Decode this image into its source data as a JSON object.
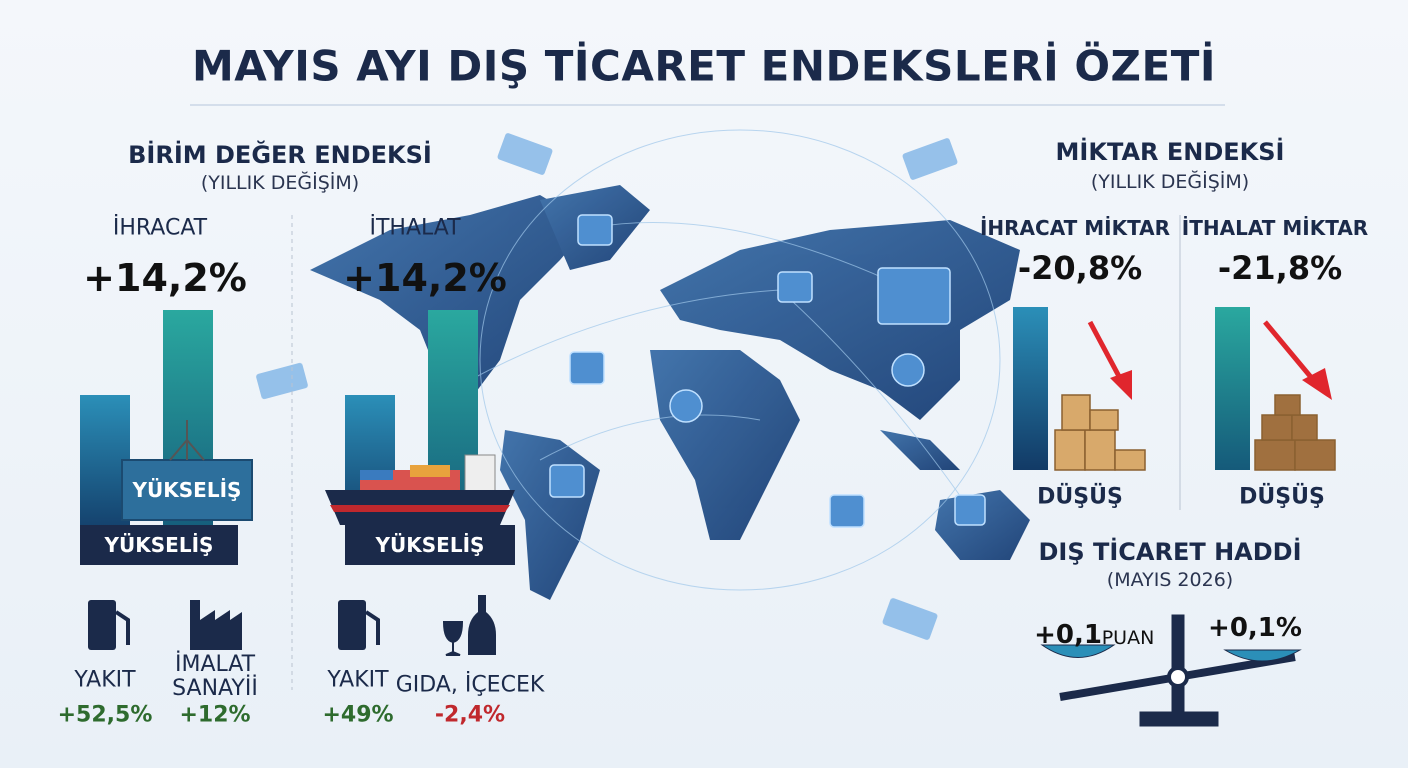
{
  "title": "MAYIS AYI DIŞ TİCARET ENDEKSLERİ ÖZETİ",
  "unit_value_index": {
    "title": "BİRİM DEĞER ENDEKSİ",
    "subtitle": "(YILLIK DEĞİŞİM)",
    "export": {
      "label": "İHRACAT",
      "change": "+14,2%",
      "container_label": "YÜKSELİŞ",
      "trend": "YÜKSELİŞ",
      "items": [
        {
          "label": "YAKIT",
          "change": "+52,5%"
        },
        {
          "label": "İMALAT SANAYİİ",
          "change": "+12%"
        }
      ]
    },
    "import": {
      "label": "İTHALAT",
      "change": "+14,2%",
      "trend": "YÜKSELİŞ",
      "items": [
        {
          "label": "YAKIT",
          "change": "+49%"
        },
        {
          "label": "GIDA, İÇECEK",
          "change": "-2,4%"
        }
      ]
    }
  },
  "quantity_index": {
    "title": "MİKTAR ENDEKSİ",
    "subtitle": "(YILLIK DEĞİŞİM)",
    "export": {
      "label": "İHRACAT MİKTAR",
      "change": "-20,8%",
      "trend": "DÜŞÜŞ"
    },
    "import": {
      "label": "İTHALAT MİKTAR",
      "change": "-21,8%",
      "trend": "DÜŞÜŞ"
    }
  },
  "terms_of_trade": {
    "title": "DIŞ TİCARET HADDİ",
    "subtitle": "(MAYIS 2026)",
    "points": "+0,1",
    "points_unit": "PUAN",
    "percent": "+0,1%"
  }
}
